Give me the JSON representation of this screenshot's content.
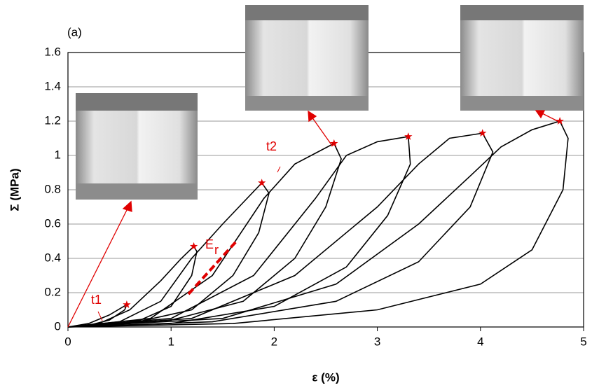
{
  "chart_data": {
    "type": "line",
    "xlabel": "ε (%)",
    "ylabel": "Σ (MPa)",
    "xlim": [
      0,
      5
    ],
    "xticks": [
      0,
      1,
      2,
      3,
      4,
      5
    ],
    "ylim": [
      0,
      1.6
    ],
    "yticks": [
      0,
      0.2,
      0.4,
      0.6,
      0.8,
      1,
      1.2,
      1.4,
      1.6
    ],
    "grid": true,
    "series": [
      {
        "color": "#000000",
        "x": [
          0,
          0.2,
          0.4,
          0.57,
          0.55,
          0.4,
          0.2,
          0
        ],
        "y": [
          0,
          0.02,
          0.07,
          0.13,
          0.1,
          0.04,
          0.01,
          0
        ]
      },
      {
        "color": "#000000",
        "x": [
          0,
          0.3,
          0.6,
          0.9,
          1.1,
          1.22,
          1.25,
          1.2,
          1.0,
          0.7,
          0.3,
          0
        ],
        "y": [
          0,
          0.02,
          0.1,
          0.27,
          0.4,
          0.47,
          0.44,
          0.3,
          0.12,
          0.04,
          0.005,
          0
        ]
      },
      {
        "color": "#000000",
        "x": [
          0,
          0.5,
          0.9,
          1.2,
          1.5,
          1.88,
          1.95,
          1.85,
          1.6,
          1.2,
          0.6,
          0
        ],
        "y": [
          0,
          0.03,
          0.15,
          0.4,
          0.6,
          0.84,
          0.78,
          0.55,
          0.3,
          0.1,
          0.02,
          0
        ]
      },
      {
        "color": "#000000",
        "x": [
          0,
          0.8,
          1.4,
          1.9,
          2.2,
          2.58,
          2.65,
          2.5,
          2.2,
          1.7,
          1.0,
          0
        ],
        "y": [
          0,
          0.05,
          0.3,
          0.75,
          0.95,
          1.07,
          0.98,
          0.7,
          0.4,
          0.15,
          0.04,
          0
        ]
      },
      {
        "color": "#000000",
        "x": [
          0,
          1.0,
          1.8,
          2.4,
          2.7,
          3.0,
          3.3,
          3.32,
          3.1,
          2.7,
          2.0,
          1.0,
          0
        ],
        "y": [
          0,
          0.05,
          0.3,
          0.75,
          1.0,
          1.08,
          1.11,
          0.95,
          0.65,
          0.35,
          0.12,
          0.02,
          0
        ]
      },
      {
        "color": "#000000",
        "x": [
          0,
          1.2,
          2.2,
          3.0,
          3.4,
          3.7,
          4.02,
          4.12,
          3.9,
          3.4,
          2.6,
          1.4,
          0
        ],
        "y": [
          0,
          0.05,
          0.3,
          0.7,
          0.95,
          1.1,
          1.13,
          1.02,
          0.7,
          0.38,
          0.15,
          0.03,
          0
        ]
      },
      {
        "color": "#000000",
        "x": [
          0,
          1.5,
          2.6,
          3.4,
          3.9,
          4.2,
          4.5,
          4.77,
          4.85,
          4.8,
          4.5,
          4.0,
          3.0,
          1.6,
          0
        ],
        "y": [
          0,
          0.05,
          0.25,
          0.6,
          0.88,
          1.05,
          1.15,
          1.2,
          1.1,
          0.8,
          0.45,
          0.25,
          0.1,
          0.02,
          0
        ]
      }
    ],
    "markers": {
      "color": "#e00000",
      "x": [
        0.57,
        1.22,
        1.88,
        2.58,
        3.3,
        4.02,
        4.77
      ],
      "y": [
        0.13,
        0.47,
        0.84,
        1.07,
        1.11,
        1.13,
        1.2
      ]
    },
    "annotations": {
      "panel": "(a)",
      "t1": "t1",
      "t2": "t2",
      "er_base": "E",
      "er_sub": "r"
    }
  }
}
